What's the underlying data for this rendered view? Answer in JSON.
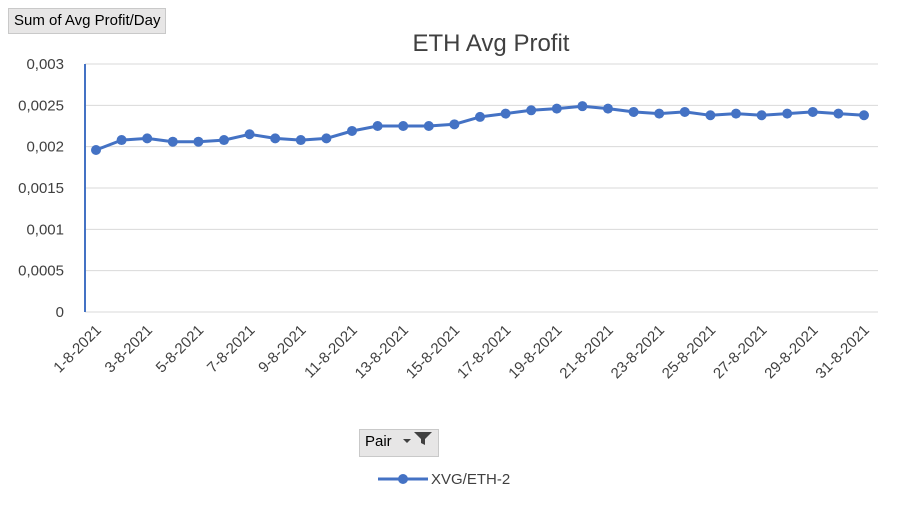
{
  "pivot": {
    "value_field": "Sum of Avg Profit/Day",
    "axis_field": "Pair"
  },
  "icons": {
    "filter": "filter-dropdown-icon"
  },
  "colors": {
    "series": "#4472c4",
    "gridline": "#d9d9d9",
    "axis_line": "#4472c4"
  },
  "chart_data": {
    "type": "line",
    "title": "ETH Avg Profit",
    "xlabel": "",
    "ylabel": "",
    "ylim": [
      0,
      0.003
    ],
    "y_ticks": [
      "0",
      "0,0005",
      "0,001",
      "0,0015",
      "0,002",
      "0,0025",
      "0,003"
    ],
    "y_tick_values": [
      0,
      0.0005,
      0.001,
      0.0015,
      0.002,
      0.0025,
      0.003
    ],
    "grid": true,
    "legend_position": "bottom",
    "x_tick_labels": [
      "1-8-2021",
      "3-8-2021",
      "5-8-2021",
      "7-8-2021",
      "9-8-2021",
      "11-8-2021",
      "13-8-2021",
      "15-8-2021",
      "17-8-2021",
      "19-8-2021",
      "21-8-2021",
      "23-8-2021",
      "25-8-2021",
      "27-8-2021",
      "29-8-2021",
      "31-8-2021"
    ],
    "categories": [
      "1-8-2021",
      "2-8-2021",
      "3-8-2021",
      "4-8-2021",
      "5-8-2021",
      "6-8-2021",
      "7-8-2021",
      "8-8-2021",
      "9-8-2021",
      "10-8-2021",
      "11-8-2021",
      "12-8-2021",
      "13-8-2021",
      "14-8-2021",
      "15-8-2021",
      "16-8-2021",
      "17-8-2021",
      "18-8-2021",
      "19-8-2021",
      "20-8-2021",
      "21-8-2021",
      "22-8-2021",
      "23-8-2021",
      "24-8-2021",
      "25-8-2021",
      "26-8-2021",
      "27-8-2021",
      "28-8-2021",
      "29-8-2021",
      "30-8-2021",
      "31-8-2021"
    ],
    "series": [
      {
        "name": "XVG/ETH-2",
        "values": [
          0.00196,
          0.00208,
          0.0021,
          0.00206,
          0.00206,
          0.00208,
          0.00215,
          0.0021,
          0.00208,
          0.0021,
          0.00219,
          0.00225,
          0.00225,
          0.00225,
          0.00227,
          0.00236,
          0.0024,
          0.00244,
          0.00246,
          0.00249,
          0.00246,
          0.00242,
          0.0024,
          0.00242,
          0.00238,
          0.0024,
          0.00238,
          0.0024,
          0.00242,
          0.0024,
          0.00238
        ]
      }
    ]
  }
}
